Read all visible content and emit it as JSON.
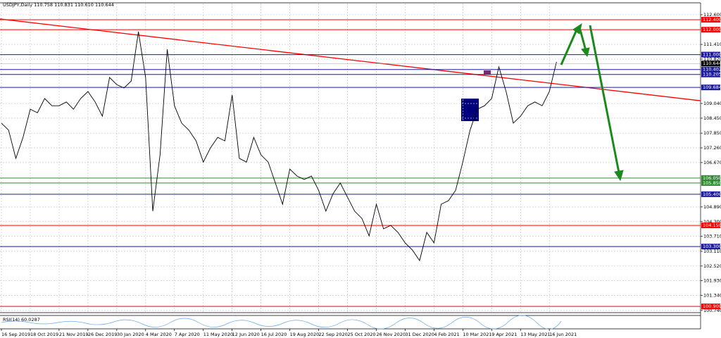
{
  "chart_data": {
    "type": "line",
    "title": "USDJPY,Daily 110.758 110.831 110.610 110.644",
    "indicator_label": "RSI(14) 60.0287",
    "categories": [
      "16 Sep 2019",
      null,
      null,
      null,
      "18 Oct 2019",
      null,
      null,
      null,
      "21 Nov 2019",
      null,
      null,
      null,
      "26 Dec 2019",
      null,
      null,
      null,
      "30 Jan 2020",
      null,
      null,
      null,
      "4 Mar 2020",
      null,
      null,
      null,
      "7 Apr 2020",
      null,
      null,
      null,
      "11 May 2020",
      null,
      null,
      null,
      "12 Jun 2020",
      null,
      null,
      null,
      "16 Jul 2020",
      null,
      null,
      null,
      "19 Aug 2020",
      null,
      null,
      null,
      "22 Sep 2020",
      null,
      null,
      null,
      "25 Oct 2020",
      null,
      null,
      null,
      "26 Nov 2020",
      null,
      null,
      null,
      "31 Dec 2020",
      null,
      null,
      null,
      "4 Feb 2021",
      null,
      null,
      null,
      "10 Mar 2021",
      null,
      null,
      null,
      "9 Apr 2021",
      null,
      null,
      null,
      "13 May 2021",
      null,
      null,
      null,
      "16 Jun 2021",
      null,
      null,
      null,
      null,
      null,
      null,
      null,
      null,
      null,
      null,
      null,
      null,
      null,
      null,
      null,
      null,
      null,
      null,
      null,
      null
    ],
    "series": [
      {
        "name": "USDJPY",
        "color": "#000000",
        "values": [
          108.25,
          107.97,
          106.84,
          107.68,
          108.81,
          108.67,
          109.24,
          108.95,
          108.95,
          109.1,
          108.81,
          109.24,
          109.52,
          109.1,
          108.53,
          110.08,
          109.8,
          109.66,
          109.94,
          111.92,
          110.08,
          104.72,
          106.98,
          111.21,
          108.95,
          108.25,
          107.97,
          107.54,
          106.69,
          107.26,
          107.68,
          107.54,
          109.38,
          106.84,
          106.69,
          107.68,
          106.98,
          106.69,
          105.85,
          105.0,
          106.41,
          106.13,
          105.99,
          106.13,
          105.56,
          104.72,
          105.42,
          105.85,
          105.28,
          104.72,
          104.43,
          103.73,
          105.0,
          104.01,
          104.15,
          103.87,
          103.45,
          103.16,
          102.74,
          103.87,
          103.45,
          105.0,
          105.14,
          105.56,
          106.69,
          107.97,
          108.81,
          108.95,
          109.24,
          110.51,
          109.52,
          108.25,
          108.53,
          108.95,
          109.1,
          108.95,
          109.52,
          110.71,
          null,
          null,
          null,
          null,
          null,
          null,
          null,
          null,
          null,
          null,
          null,
          null,
          null,
          null,
          null,
          null,
          null,
          null,
          null
        ]
      }
    ],
    "ylim": [
      100.65,
      113.05
    ],
    "yticks": [
      {
        "value": 112.6,
        "label": "112.600"
      },
      {
        "value": 111.41,
        "label": "111.410"
      },
      {
        "value": 110.82,
        "label": "110.820"
      },
      {
        "value": 109.04,
        "label": "109.040"
      },
      {
        "value": 108.45,
        "label": "108.450"
      },
      {
        "value": 107.85,
        "label": "107.850"
      },
      {
        "value": 107.26,
        "label": "107.260"
      },
      {
        "value": 106.67,
        "label": "106.670"
      },
      {
        "value": 104.89,
        "label": "104.890"
      },
      {
        "value": 104.3,
        "label": "104.300"
      },
      {
        "value": 103.71,
        "label": "103.710"
      },
      {
        "value": 103.11,
        "label": "103.110"
      },
      {
        "value": 102.52,
        "label": "102.520"
      },
      {
        "value": 101.93,
        "label": "101.930"
      },
      {
        "value": 101.34,
        "label": "101.340"
      },
      {
        "value": 100.74,
        "label": "100.740"
      }
    ],
    "grid": true,
    "levels": [
      {
        "value": 112.4,
        "label": "112.400",
        "color": "#ff0000"
      },
      {
        "value": 112.0,
        "label": "112.000",
        "color": "#ff0000"
      },
      {
        "value": 111.0,
        "label": "111.000",
        "color": "#1c1c9c"
      },
      {
        "value": 110.402,
        "label": "110.402",
        "color": "#1c1c9c"
      },
      {
        "value": 110.205,
        "label": "110.205",
        "color": "#1c1c9c"
      },
      {
        "value": 109.684,
        "label": "109.684",
        "color": "#1c1c9c"
      },
      {
        "value": 106.05,
        "label": "106.050",
        "color": "#2e8b2e"
      },
      {
        "value": 105.85,
        "label": "105.850",
        "color": "#2e8b2e"
      },
      {
        "value": 105.4,
        "label": "105.400",
        "color": "#1c1c9c"
      },
      {
        "value": 104.15,
        "label": "104.150",
        "color": "#ff0000"
      },
      {
        "value": 103.3,
        "label": "103.300",
        "color": "#1c1c9c"
      },
      {
        "value": 100.9,
        "label": "100.900",
        "color": "#ff0000"
      }
    ],
    "last_price": {
      "value": 110.644,
      "label": "110.644"
    },
    "trendline": {
      "values": [
        112.43,
        109.15
      ],
      "color": "#ff0000"
    }
  }
}
